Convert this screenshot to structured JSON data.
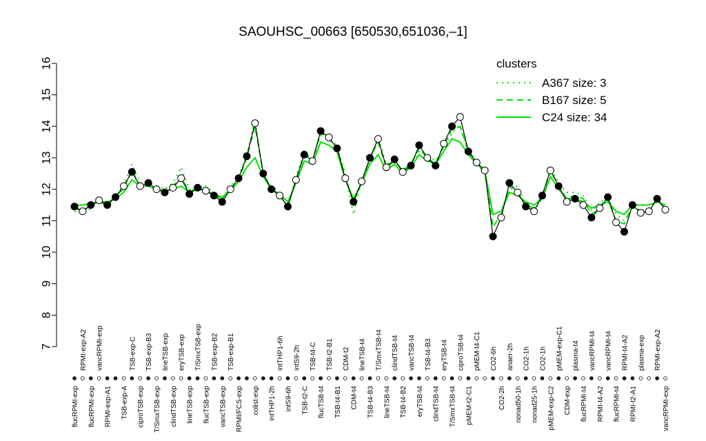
{
  "chart_data": {
    "type": "line",
    "title": "SAOUHSC_00663 [650530,651036,–1]",
    "ylim": [
      7,
      16
    ],
    "yticks": [
      7,
      8,
      9,
      10,
      11,
      12,
      13,
      14,
      15,
      16
    ],
    "legend": "top-right",
    "legend_title": "clusters",
    "color": "#000000",
    "categories": [
      "flucRPMI-exp",
      "RPMI-exp-A2",
      "flucRPMI-exp",
      "vancRPMI-exp",
      "RPMI-exp-A1",
      null,
      "TSB-exp-A",
      "TSB-exp-C",
      "ciproTSB-exp",
      "TSB-exp-B3",
      "T/SmxTSB-exp",
      "lineTSB-exp",
      "clindTSB-exp",
      "eryTSB-exp",
      "lineTSB-exp",
      "T/SmxTSB-exp",
      "flucTSB-exp",
      "TSB-exp-B2",
      "vancTSB-exp",
      "TSB-exp-B1",
      "RPMI/FCS-exp",
      null,
      "colist-exp",
      null,
      "intTHP1-2h",
      "intTHP1-6h",
      "intS9-6h",
      "intS9-2h",
      "TSB-t2-C",
      "TSB-t4-C",
      "flucTSB-t4",
      "TSB-t2-B1",
      "TSB-t4-B1",
      "CDM-t2",
      "CDM-t4",
      "lineTSB-t4",
      "TSB-t4-B3",
      "T/SmxTSB-t4",
      "lineTSB-t4",
      "clindTSB-t4",
      "TSB-t4-B2",
      "vancTSB-t4",
      "eryTSB-t4",
      "TSB-t4-B3",
      "clindTSB-t4",
      "eryTSB-t4",
      "T/SmxTSB-t4",
      "ciproTSB-t4",
      "pMEM-t2-C1",
      "pMEM-t4-C1",
      null,
      "CO2-6h",
      "CO2-2h",
      "anaer-2h",
      "nonad50-1h",
      "CO2-1h",
      "nonad25-1h",
      "CO2-1h",
      "pMEM-exp-C2",
      "pMEM-exp-C1",
      "CDM-exp",
      "plasma-t4",
      "flucRPMI-t4",
      "vancRPMI-t4",
      "RPMI-t4-A2",
      "vancRPMI-t4",
      "flucRPMI-t4",
      "RPMI-t4-A2",
      "RPMI-t2-A1",
      "plasma-exp",
      null,
      "RPMI-exp-A2",
      "vancRPMI-exp"
    ],
    "values": [
      11.45,
      11.3,
      11.5,
      11.65,
      11.5,
      11.75,
      12.1,
      12.55,
      12.1,
      12.2,
      12.0,
      11.9,
      12.05,
      12.35,
      11.85,
      12.05,
      11.95,
      11.8,
      11.6,
      12.0,
      12.35,
      13.05,
      14.1,
      12.5,
      12.0,
      11.8,
      11.45,
      12.3,
      13.1,
      12.9,
      13.85,
      13.65,
      13.3,
      12.35,
      11.6,
      12.25,
      13.0,
      13.6,
      12.7,
      12.95,
      12.55,
      12.75,
      13.4,
      13.0,
      12.75,
      13.45,
      14.0,
      14.3,
      13.2,
      12.85,
      12.6,
      10.5,
      11.1,
      12.2,
      11.9,
      11.45,
      11.3,
      11.8,
      12.6,
      12.1,
      11.6,
      11.7,
      11.5,
      11.1,
      11.4,
      11.75,
      10.95,
      10.65,
      11.5,
      11.25,
      11.3,
      11.7,
      11.35
    ],
    "filled": [
      true,
      false,
      true,
      false,
      true,
      true,
      false,
      true,
      false,
      true,
      false,
      true,
      false,
      false,
      true,
      true,
      false,
      true,
      true,
      false,
      true,
      true,
      false,
      true,
      true,
      false,
      true,
      false,
      true,
      false,
      true,
      false,
      true,
      false,
      true,
      false,
      true,
      false,
      false,
      true,
      false,
      true,
      true,
      false,
      true,
      false,
      true,
      false,
      true,
      false,
      false,
      true,
      false,
      true,
      false,
      true,
      false,
      true,
      false,
      true,
      false,
      true,
      false,
      true,
      false,
      true,
      false,
      true,
      true,
      false,
      false,
      true,
      false
    ],
    "series": [
      {
        "name": "A367 size: 3",
        "color": "#00dd00",
        "style": "dotted",
        "values": [
          11.3,
          11.2,
          11.4,
          11.7,
          11.4,
          11.8,
          12.1,
          12.8,
          12.2,
          12.2,
          12.1,
          12.0,
          12.2,
          12.7,
          12.0,
          12.1,
          12.1,
          11.9,
          11.7,
          12.1,
          12.4,
          13.1,
          14.2,
          12.4,
          12.1,
          11.9,
          11.4,
          12.4,
          13.2,
          12.9,
          13.7,
          13.6,
          13.4,
          12.5,
          11.2,
          12.3,
          12.9,
          13.6,
          12.8,
          12.9,
          12.6,
          12.8,
          13.2,
          13.1,
          12.9,
          13.3,
          13.8,
          14.0,
          13.2,
          12.8,
          12.5,
          11.2,
          11.3,
          12.0,
          12.1,
          11.5,
          11.3,
          11.7,
          12.7,
          12.2,
          11.9,
          11.9,
          11.8,
          11.3,
          11.6,
          11.7,
          11.2,
          11.0,
          11.4,
          11.3,
          11.4,
          11.6,
          11.5
        ]
      },
      {
        "name": "B167 size: 5",
        "color": "#00dd00",
        "style": "dashed",
        "values": [
          11.4,
          11.3,
          11.5,
          11.6,
          11.5,
          11.8,
          12.0,
          12.6,
          12.1,
          12.2,
          12.0,
          11.9,
          12.1,
          12.4,
          11.9,
          12.1,
          12.0,
          11.8,
          11.7,
          12.0,
          12.3,
          13.0,
          14.0,
          12.5,
          12.0,
          11.8,
          11.5,
          12.3,
          13.1,
          12.9,
          13.8,
          13.6,
          13.3,
          12.4,
          11.6,
          12.2,
          13.0,
          13.5,
          12.7,
          12.9,
          12.6,
          12.8,
          13.3,
          13.0,
          12.8,
          13.4,
          13.9,
          14.0,
          13.2,
          12.9,
          12.6,
          10.8,
          11.2,
          12.1,
          11.9,
          11.5,
          11.4,
          11.8,
          12.6,
          12.1,
          11.7,
          11.8,
          11.7,
          11.2,
          11.4,
          11.7,
          11.0,
          10.9,
          11.5,
          11.3,
          11.3,
          11.7,
          11.4
        ]
      },
      {
        "name": "C24 size: 34",
        "color": "#00dd00",
        "style": "solid",
        "values": [
          11.5,
          11.5,
          11.55,
          11.6,
          11.6,
          11.7,
          11.9,
          12.3,
          12.1,
          12.1,
          12.0,
          11.95,
          12.0,
          12.1,
          11.9,
          12.0,
          11.95,
          11.85,
          11.75,
          11.95,
          12.25,
          12.7,
          13.0,
          12.4,
          12.0,
          11.85,
          11.6,
          12.2,
          12.9,
          12.8,
          13.5,
          13.4,
          13.2,
          12.3,
          11.7,
          12.2,
          12.8,
          13.1,
          12.6,
          12.8,
          12.5,
          12.7,
          13.1,
          12.9,
          12.8,
          13.2,
          13.6,
          13.5,
          13.1,
          12.8,
          12.6,
          11.2,
          11.3,
          11.9,
          11.8,
          11.6,
          11.5,
          11.7,
          12.4,
          12.0,
          11.7,
          11.7,
          11.6,
          11.4,
          11.5,
          11.6,
          11.3,
          11.2,
          11.5,
          11.5,
          11.5,
          11.6,
          11.5
        ]
      }
    ]
  }
}
